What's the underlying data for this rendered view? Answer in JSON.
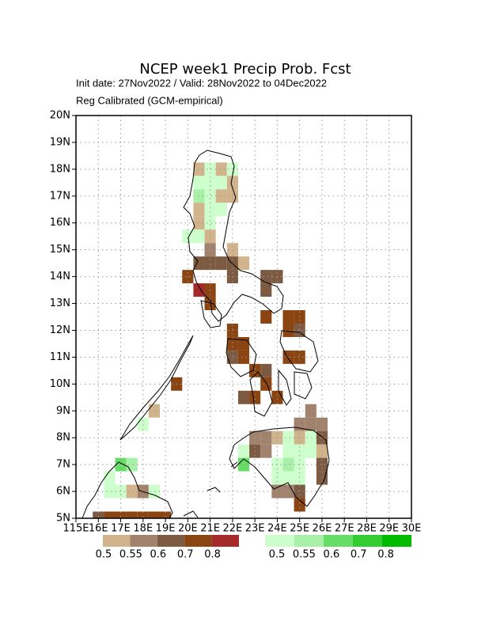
{
  "title": "NCEP week1 Precip Prob. Fcst",
  "subtitle": "Init date: 27Nov2022 / Valid: 28Nov2022 to 04Dec2022",
  "subtitle2": "Reg Calibrated (GCM-empirical)",
  "map": {
    "xlim": [
      115,
      130
    ],
    "ylim": [
      5,
      20
    ],
    "cell_size": 0.5,
    "grid": true,
    "xticks": [
      {
        "value": 115,
        "label": "115E"
      },
      {
        "value": 116,
        "label": "16E"
      },
      {
        "value": 117,
        "label": "17E"
      },
      {
        "value": 118,
        "label": "18E"
      },
      {
        "value": 119,
        "label": "19E"
      },
      {
        "value": 120,
        "label": "20E"
      },
      {
        "value": 121,
        "label": "21E"
      },
      {
        "value": 122,
        "label": "22E"
      },
      {
        "value": 123,
        "label": "23E"
      },
      {
        "value": 124,
        "label": "24E"
      },
      {
        "value": 125,
        "label": "25E"
      },
      {
        "value": 126,
        "label": "26E"
      },
      {
        "value": 127,
        "label": "27E"
      },
      {
        "value": 128,
        "label": "28E"
      },
      {
        "value": 129,
        "label": "29E"
      },
      {
        "value": 130,
        "label": "30E"
      }
    ],
    "yticks": [
      {
        "value": 5,
        "label": "5N"
      },
      {
        "value": 6,
        "label": "6N"
      },
      {
        "value": 7,
        "label": "7N"
      },
      {
        "value": 8,
        "label": "8N"
      },
      {
        "value": 9,
        "label": "9N"
      },
      {
        "value": 10,
        "label": "10N"
      },
      {
        "value": 11,
        "label": "11N"
      },
      {
        "value": 12,
        "label": "12N"
      },
      {
        "value": 13,
        "label": "13N"
      },
      {
        "value": 14,
        "label": "14N"
      },
      {
        "value": 15,
        "label": "15N"
      },
      {
        "value": 16,
        "label": "16N"
      },
      {
        "value": 17,
        "label": "17N"
      },
      {
        "value": 18,
        "label": "18N"
      },
      {
        "value": 19,
        "label": "19N"
      },
      {
        "value": 20,
        "label": "20N"
      }
    ],
    "cells": [
      {
        "lon": 120.25,
        "lat": 17.75,
        "color": "#d2b48c"
      },
      {
        "lon": 120.75,
        "lat": 17.75,
        "color": "#ccffcc"
      },
      {
        "lon": 121.25,
        "lat": 17.75,
        "color": "#d2b48c"
      },
      {
        "lon": 121.75,
        "lat": 17.75,
        "color": "#ccffcc"
      },
      {
        "lon": 120.25,
        "lat": 17.25,
        "color": "#ccffcc"
      },
      {
        "lon": 120.75,
        "lat": 17.25,
        "color": "#ccffcc"
      },
      {
        "lon": 121.25,
        "lat": 17.25,
        "color": "#ccffcc"
      },
      {
        "lon": 121.75,
        "lat": 17.25,
        "color": "#d2b48c"
      },
      {
        "lon": 120.25,
        "lat": 16.75,
        "color": "#a8f0a8"
      },
      {
        "lon": 120.75,
        "lat": 16.75,
        "color": "#ccffcc"
      },
      {
        "lon": 121.25,
        "lat": 16.75,
        "color": "#d2b48c"
      },
      {
        "lon": 121.75,
        "lat": 16.75,
        "color": "#d2b48c"
      },
      {
        "lon": 120.25,
        "lat": 16.25,
        "color": "#d2b48c"
      },
      {
        "lon": 120.75,
        "lat": 16.25,
        "color": "#ccffcc"
      },
      {
        "lon": 121.25,
        "lat": 16.25,
        "color": "#ccffcc"
      },
      {
        "lon": 120.25,
        "lat": 15.75,
        "color": "#d2b48c"
      },
      {
        "lon": 120.75,
        "lat": 15.75,
        "color": "#ccffcc"
      },
      {
        "lon": 119.75,
        "lat": 15.25,
        "color": "#ccffcc"
      },
      {
        "lon": 120.25,
        "lat": 15.25,
        "color": "#ccffcc"
      },
      {
        "lon": 120.75,
        "lat": 15.25,
        "color": "#d2b48c"
      },
      {
        "lon": 120.75,
        "lat": 14.75,
        "color": "#a0826d"
      },
      {
        "lon": 121.75,
        "lat": 14.75,
        "color": "#d2b48c"
      },
      {
        "lon": 120.25,
        "lat": 14.25,
        "color": "#7d5a42"
      },
      {
        "lon": 120.75,
        "lat": 14.25,
        "color": "#7d5a42"
      },
      {
        "lon": 121.25,
        "lat": 14.25,
        "color": "#7d5a42"
      },
      {
        "lon": 121.75,
        "lat": 14.25,
        "color": "#7d5a42"
      },
      {
        "lon": 122.25,
        "lat": 14.25,
        "color": "#d2b48c"
      },
      {
        "lon": 119.75,
        "lat": 13.75,
        "color": "#8b4513"
      },
      {
        "lon": 120.25,
        "lat": 13.25,
        "color": "#a52a2a"
      },
      {
        "lon": 120.75,
        "lat": 13.25,
        "color": "#8b4513"
      },
      {
        "lon": 120.75,
        "lat": 12.75,
        "color": "#8b4513"
      },
      {
        "lon": 121.75,
        "lat": 13.75,
        "color": "#7d5a42"
      },
      {
        "lon": 123.25,
        "lat": 13.75,
        "color": "#7d5a42"
      },
      {
        "lon": 123.75,
        "lat": 13.75,
        "color": "#7d5a42"
      },
      {
        "lon": 123.25,
        "lat": 13.25,
        "color": "#7d5a42"
      },
      {
        "lon": 124.25,
        "lat": 12.25,
        "color": "#8b4513"
      },
      {
        "lon": 124.75,
        "lat": 12.25,
        "color": "#8b4513"
      },
      {
        "lon": 123.25,
        "lat": 12.25,
        "color": "#8b4513"
      },
      {
        "lon": 124.25,
        "lat": 11.75,
        "color": "#8b4513"
      },
      {
        "lon": 124.75,
        "lat": 11.75,
        "color": "#7d5a42"
      },
      {
        "lon": 121.75,
        "lat": 11.75,
        "color": "#8b4513"
      },
      {
        "lon": 121.75,
        "lat": 11.25,
        "color": "#8b4513"
      },
      {
        "lon": 122.25,
        "lat": 11.25,
        "color": "#8b4513"
      },
      {
        "lon": 121.75,
        "lat": 10.75,
        "color": "#7d5a42"
      },
      {
        "lon": 122.25,
        "lat": 10.75,
        "color": "#8b4513"
      },
      {
        "lon": 124.25,
        "lat": 10.75,
        "color": "#8b4513"
      },
      {
        "lon": 124.75,
        "lat": 10.75,
        "color": "#8b4513"
      },
      {
        "lon": 122.75,
        "lat": 10.25,
        "color": "#8b4513"
      },
      {
        "lon": 123.25,
        "lat": 10.25,
        "color": "#7d5a42"
      },
      {
        "lon": 123.25,
        "lat": 9.75,
        "color": "#8b4513"
      },
      {
        "lon": 122.25,
        "lat": 9.25,
        "color": "#7d5a42"
      },
      {
        "lon": 122.75,
        "lat": 9.25,
        "color": "#8b4513"
      },
      {
        "lon": 123.75,
        "lat": 9.25,
        "color": "#8b4513"
      },
      {
        "lon": 119.25,
        "lat": 9.75,
        "color": "#8b4513"
      },
      {
        "lon": 118.25,
        "lat": 8.75,
        "color": "#d2b48c"
      },
      {
        "lon": 117.75,
        "lat": 8.25,
        "color": "#ccffcc"
      },
      {
        "lon": 125.25,
        "lat": 8.75,
        "color": "#a0826d"
      },
      {
        "lon": 124.75,
        "lat": 8.25,
        "color": "#a0826d"
      },
      {
        "lon": 125.25,
        "lat": 8.25,
        "color": "#a0826d"
      },
      {
        "lon": 125.75,
        "lat": 8.25,
        "color": "#a0826d"
      },
      {
        "lon": 122.75,
        "lat": 7.75,
        "color": "#a0826d"
      },
      {
        "lon": 123.25,
        "lat": 7.75,
        "color": "#a0826d"
      },
      {
        "lon": 123.75,
        "lat": 7.75,
        "color": "#d2b48c"
      },
      {
        "lon": 124.25,
        "lat": 7.75,
        "color": "#ccffcc"
      },
      {
        "lon": 124.75,
        "lat": 7.75,
        "color": "#d2b48c"
      },
      {
        "lon": 125.25,
        "lat": 7.75,
        "color": "#ccffcc"
      },
      {
        "lon": 125.75,
        "lat": 7.75,
        "color": "#7d5a42"
      },
      {
        "lon": 122.25,
        "lat": 7.25,
        "color": "#ccffcc"
      },
      {
        "lon": 122.75,
        "lat": 7.25,
        "color": "#7d5a42"
      },
      {
        "lon": 123.25,
        "lat": 7.25,
        "color": "#a0826d"
      },
      {
        "lon": 124.25,
        "lat": 7.25,
        "color": "#ccffcc"
      },
      {
        "lon": 124.75,
        "lat": 7.25,
        "color": "#ccffcc"
      },
      {
        "lon": 125.25,
        "lat": 7.25,
        "color": "#ccffcc"
      },
      {
        "lon": 125.75,
        "lat": 7.25,
        "color": "#d2b48c"
      },
      {
        "lon": 122.25,
        "lat": 6.75,
        "color": "#66dd66"
      },
      {
        "lon": 123.75,
        "lat": 6.75,
        "color": "#ccffcc"
      },
      {
        "lon": 124.25,
        "lat": 6.75,
        "color": "#a8f0a8"
      },
      {
        "lon": 124.75,
        "lat": 6.75,
        "color": "#ccffcc"
      },
      {
        "lon": 125.75,
        "lat": 6.75,
        "color": "#7d5a42"
      },
      {
        "lon": 123.75,
        "lat": 6.25,
        "color": "#ccffcc"
      },
      {
        "lon": 124.25,
        "lat": 6.25,
        "color": "#ccffcc"
      },
      {
        "lon": 124.75,
        "lat": 6.25,
        "color": "#ccffcc"
      },
      {
        "lon": 125.75,
        "lat": 6.25,
        "color": "#7d5a42"
      },
      {
        "lon": 123.75,
        "lat": 5.75,
        "color": "#a0826d"
      },
      {
        "lon": 124.25,
        "lat": 5.75,
        "color": "#a0826d"
      },
      {
        "lon": 124.75,
        "lat": 5.75,
        "color": "#7d5a42"
      },
      {
        "lon": 124.75,
        "lat": 5.25,
        "color": "#8b4513"
      },
      {
        "lon": 116.25,
        "lat": 6.25,
        "color": "#ccffcc"
      },
      {
        "lon": 116.75,
        "lat": 6.75,
        "color": "#66dd66"
      },
      {
        "lon": 117.25,
        "lat": 6.75,
        "color": "#a8f0a8"
      },
      {
        "lon": 116.25,
        "lat": 5.75,
        "color": "#ccffcc"
      },
      {
        "lon": 116.75,
        "lat": 5.75,
        "color": "#ccffcc"
      },
      {
        "lon": 117.25,
        "lat": 5.75,
        "color": "#d2b48c"
      },
      {
        "lon": 117.75,
        "lat": 5.75,
        "color": "#a0826d"
      },
      {
        "lon": 118.25,
        "lat": 5.75,
        "color": "#ccffcc"
      },
      {
        "lon": 115.75,
        "lat": 4.75,
        "color": "#7d5a42"
      },
      {
        "lon": 116.25,
        "lat": 4.75,
        "color": "#8b4513"
      },
      {
        "lon": 116.75,
        "lat": 4.75,
        "color": "#8b4513"
      },
      {
        "lon": 117.25,
        "lat": 4.75,
        "color": "#8b4513"
      },
      {
        "lon": 117.75,
        "lat": 4.75,
        "color": "#8b4513"
      },
      {
        "lon": 118.25,
        "lat": 4.75,
        "color": "#8b4513"
      },
      {
        "lon": 118.75,
        "lat": 4.75,
        "color": "#8b4513"
      }
    ]
  },
  "colorbars": [
    {
      "colors": [
        "#d2b48c",
        "#a0826d",
        "#7d5a42",
        "#8b4513",
        "#a52a2a"
      ],
      "labels": [
        0.5,
        0.55,
        0.6,
        0.7,
        0.8
      ]
    },
    {
      "colors": [
        "#ccffcc",
        "#a8f0a8",
        "#66dd66",
        "#33cc33",
        "#00bb00"
      ],
      "labels": [
        0.5,
        0.55,
        0.6,
        0.7,
        0.8
      ]
    }
  ]
}
